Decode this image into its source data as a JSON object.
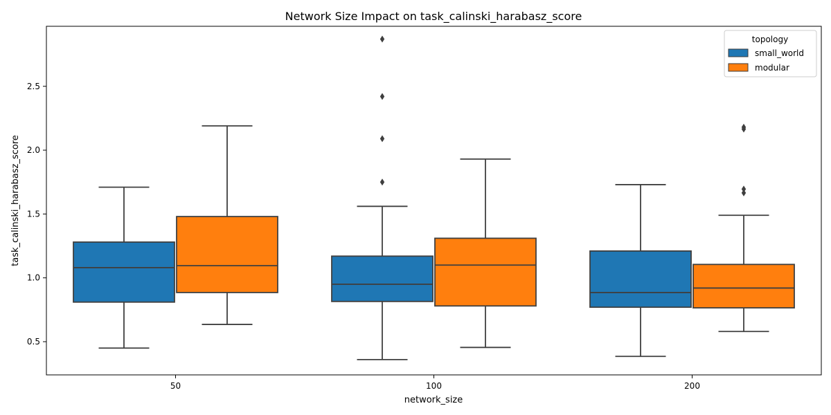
{
  "chart_data": {
    "type": "box",
    "title": "Network Size Impact on task_calinski_harabasz_score",
    "xlabel": "network_size",
    "ylabel": "task_calinski_harabasz_score",
    "categories": [
      "50",
      "100",
      "200"
    ],
    "yticks": [
      0.5,
      1.0,
      1.5,
      2.0,
      2.5
    ],
    "ytick_labels": [
      "0.5",
      "1.0",
      "1.5",
      "2.0",
      "2.5"
    ],
    "ylim": [
      0.24,
      2.97
    ],
    "grid": false,
    "legend": {
      "title": "topology",
      "position": "top-right"
    },
    "series": [
      {
        "name": "small_world",
        "color": "#1f77b4",
        "boxes": [
          {
            "whisker_low": 0.45,
            "q1": 0.81,
            "median": 1.08,
            "q3": 1.28,
            "whisker_high": 1.71,
            "outliers": []
          },
          {
            "whisker_low": 0.36,
            "q1": 0.815,
            "median": 0.95,
            "q3": 1.17,
            "whisker_high": 1.56,
            "outliers": [
              1.75,
              2.09,
              2.42,
              2.87
            ]
          },
          {
            "whisker_low": 0.385,
            "q1": 0.77,
            "median": 0.885,
            "q3": 1.21,
            "whisker_high": 1.73,
            "outliers": []
          }
        ]
      },
      {
        "name": "modular",
        "color": "#ff7f0e",
        "boxes": [
          {
            "whisker_low": 0.635,
            "q1": 0.885,
            "median": 1.095,
            "q3": 1.48,
            "whisker_high": 2.19,
            "outliers": []
          },
          {
            "whisker_low": 0.455,
            "q1": 0.78,
            "median": 1.1,
            "q3": 1.31,
            "whisker_high": 1.93,
            "outliers": []
          },
          {
            "whisker_low": 0.58,
            "q1": 0.765,
            "median": 0.92,
            "q3": 1.105,
            "whisker_high": 1.49,
            "outliers": [
              1.665,
              1.695,
              2.165,
              2.18
            ]
          }
        ]
      }
    ]
  }
}
